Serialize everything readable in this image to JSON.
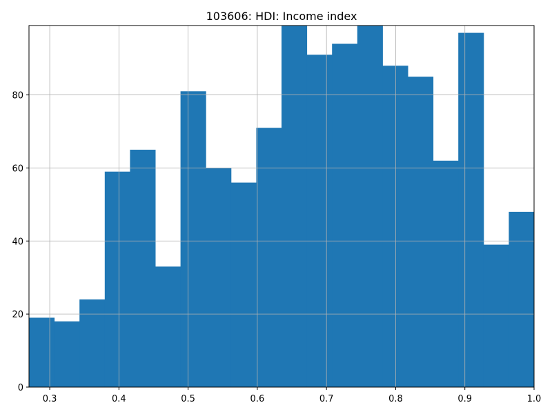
{
  "chart_data": {
    "type": "bar",
    "title": "103606: HDI: Income index",
    "xlabel": "",
    "ylabel": "",
    "xlim": [
      0.27,
      1.0
    ],
    "ylim": [
      0,
      99
    ],
    "grid": true,
    "bin_edges": [
      0.27,
      0.3065,
      0.343,
      0.3795,
      0.416,
      0.4525,
      0.489,
      0.5255,
      0.562,
      0.5985,
      0.635,
      0.6715,
      0.708,
      0.7445,
      0.781,
      0.8175,
      0.854,
      0.8905,
      0.927,
      0.9635,
      1.0
    ],
    "values": [
      19,
      18,
      24,
      59,
      65,
      33,
      81,
      60,
      56,
      71,
      99,
      91,
      94,
      99,
      88,
      85,
      62,
      97,
      39,
      48
    ],
    "x_ticks": [
      0.3,
      0.4,
      0.5,
      0.6,
      0.7,
      0.8,
      0.9,
      1.0
    ],
    "x_tick_labels": [
      "0.3",
      "0.4",
      "0.5",
      "0.6",
      "0.7",
      "0.8",
      "0.9",
      "1.0"
    ],
    "y_ticks": [
      0,
      20,
      40,
      60,
      80
    ],
    "y_tick_labels": [
      "0",
      "20",
      "40",
      "60",
      "80"
    ],
    "colors": {
      "bar": "#1f77b4",
      "grid": "#b0b0b0",
      "axis": "#000000"
    }
  }
}
